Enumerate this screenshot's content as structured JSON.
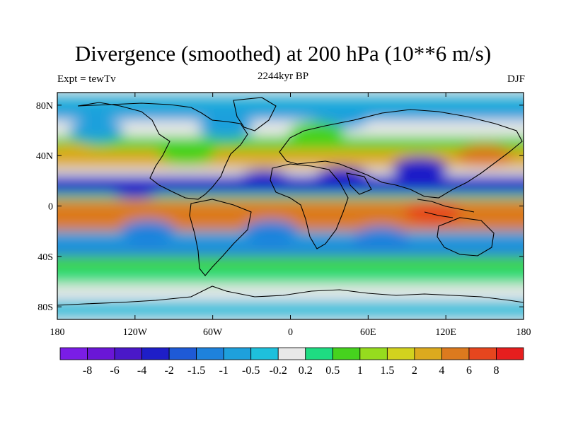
{
  "title": "Divergence (smoothed) at 200 hPa (10**6 m/s)",
  "left_label": "Expt = tewTv",
  "center_label": "2244kyr BP",
  "right_label": "DJF",
  "map": {
    "lon_range": [
      -180,
      180
    ],
    "lat_range": [
      -90,
      90
    ],
    "x_ticks": [
      {
        "value": -180,
        "label": "180"
      },
      {
        "value": -120,
        "label": "120W"
      },
      {
        "value": -60,
        "label": "60W"
      },
      {
        "value": 0,
        "label": "0"
      },
      {
        "value": 60,
        "label": "60E"
      },
      {
        "value": 120,
        "label": "120E"
      },
      {
        "value": 180,
        "label": "180"
      }
    ],
    "y_ticks": [
      {
        "value": 80,
        "label": "80N"
      },
      {
        "value": 40,
        "label": "40N"
      },
      {
        "value": 0,
        "label": "0"
      },
      {
        "value": -40,
        "label": "40S"
      },
      {
        "value": -80,
        "label": "80S"
      }
    ]
  },
  "colorbar": {
    "colors": [
      "#7a1de6",
      "#6a16d6",
      "#4a18c8",
      "#1e1ec8",
      "#1e5ad6",
      "#1e82dc",
      "#1ea0dc",
      "#1ec0dc",
      "#e8e8e8",
      "#1edc82",
      "#46d21e",
      "#96dc1e",
      "#d2d21e",
      "#dcaa1e",
      "#dc7a1e",
      "#e6461e",
      "#e61e1e"
    ],
    "labels": [
      "-8",
      "-6",
      "-4",
      "-2",
      "-1.5",
      "-1",
      "-0.5",
      "-0.2",
      "0.2",
      "0.5",
      "1",
      "1.5",
      "2",
      "4",
      "6",
      "8"
    ]
  },
  "bands": [
    {
      "lat": [
        82,
        90
      ],
      "value": -0.5
    },
    {
      "lat": [
        68,
        82
      ],
      "value": -0.8
    },
    {
      "lat": [
        55,
        68
      ],
      "value": 0.0
    },
    {
      "lat": [
        45,
        55
      ],
      "value": 0.6
    },
    {
      "lat": [
        30,
        45
      ],
      "value": 2.0
    },
    {
      "lat": [
        24,
        30
      ],
      "value": 0.0
    },
    {
      "lat": [
        10,
        24
      ],
      "value": -3.0
    },
    {
      "lat": [
        5,
        10
      ],
      "value": 0.3
    },
    {
      "lat": [
        -20,
        5
      ],
      "value": 4.0
    },
    {
      "lat": [
        -30,
        -20
      ],
      "value": -0.8
    },
    {
      "lat": [
        -40,
        -30
      ],
      "value": -1.5
    },
    {
      "lat": [
        -50,
        -40
      ],
      "value": 0.8
    },
    {
      "lat": [
        -62,
        -50
      ],
      "value": 0.4
    },
    {
      "lat": [
        -75,
        -62
      ],
      "value": 0.0
    },
    {
      "lat": [
        -90,
        -75
      ],
      "value": -0.5
    }
  ],
  "blobs": [
    {
      "lon": -120,
      "lat": 15,
      "value": -3.0
    },
    {
      "lon": -20,
      "lat": 20,
      "value": -3.0
    },
    {
      "lon": 40,
      "lat": 22,
      "value": -4.0
    },
    {
      "lon": 100,
      "lat": 30,
      "value": -3.0
    },
    {
      "lon": -150,
      "lat": 60,
      "value": -1.0
    },
    {
      "lon": -50,
      "lat": 62,
      "value": -1.0
    },
    {
      "lon": 40,
      "lat": 70,
      "value": -0.8
    },
    {
      "lon": -60,
      "lat": -10,
      "value": 4.0
    },
    {
      "lon": 20,
      "lat": -10,
      "value": 4.0
    },
    {
      "lon": 110,
      "lat": -5,
      "value": 6.0
    },
    {
      "lon": -170,
      "lat": -10,
      "value": 4.0
    },
    {
      "lon": -110,
      "lat": -20,
      "value": -1.5
    },
    {
      "lon": -15,
      "lat": -20,
      "value": -1.5
    },
    {
      "lon": 70,
      "lat": -25,
      "value": -1.5
    },
    {
      "lon": 150,
      "lat": 40,
      "value": 4.0
    },
    {
      "lon": -170,
      "lat": 40,
      "value": 2.0
    },
    {
      "lon": 20,
      "lat": 58,
      "value": 0.6
    },
    {
      "lon": -80,
      "lat": 42,
      "value": 0.6
    }
  ]
}
